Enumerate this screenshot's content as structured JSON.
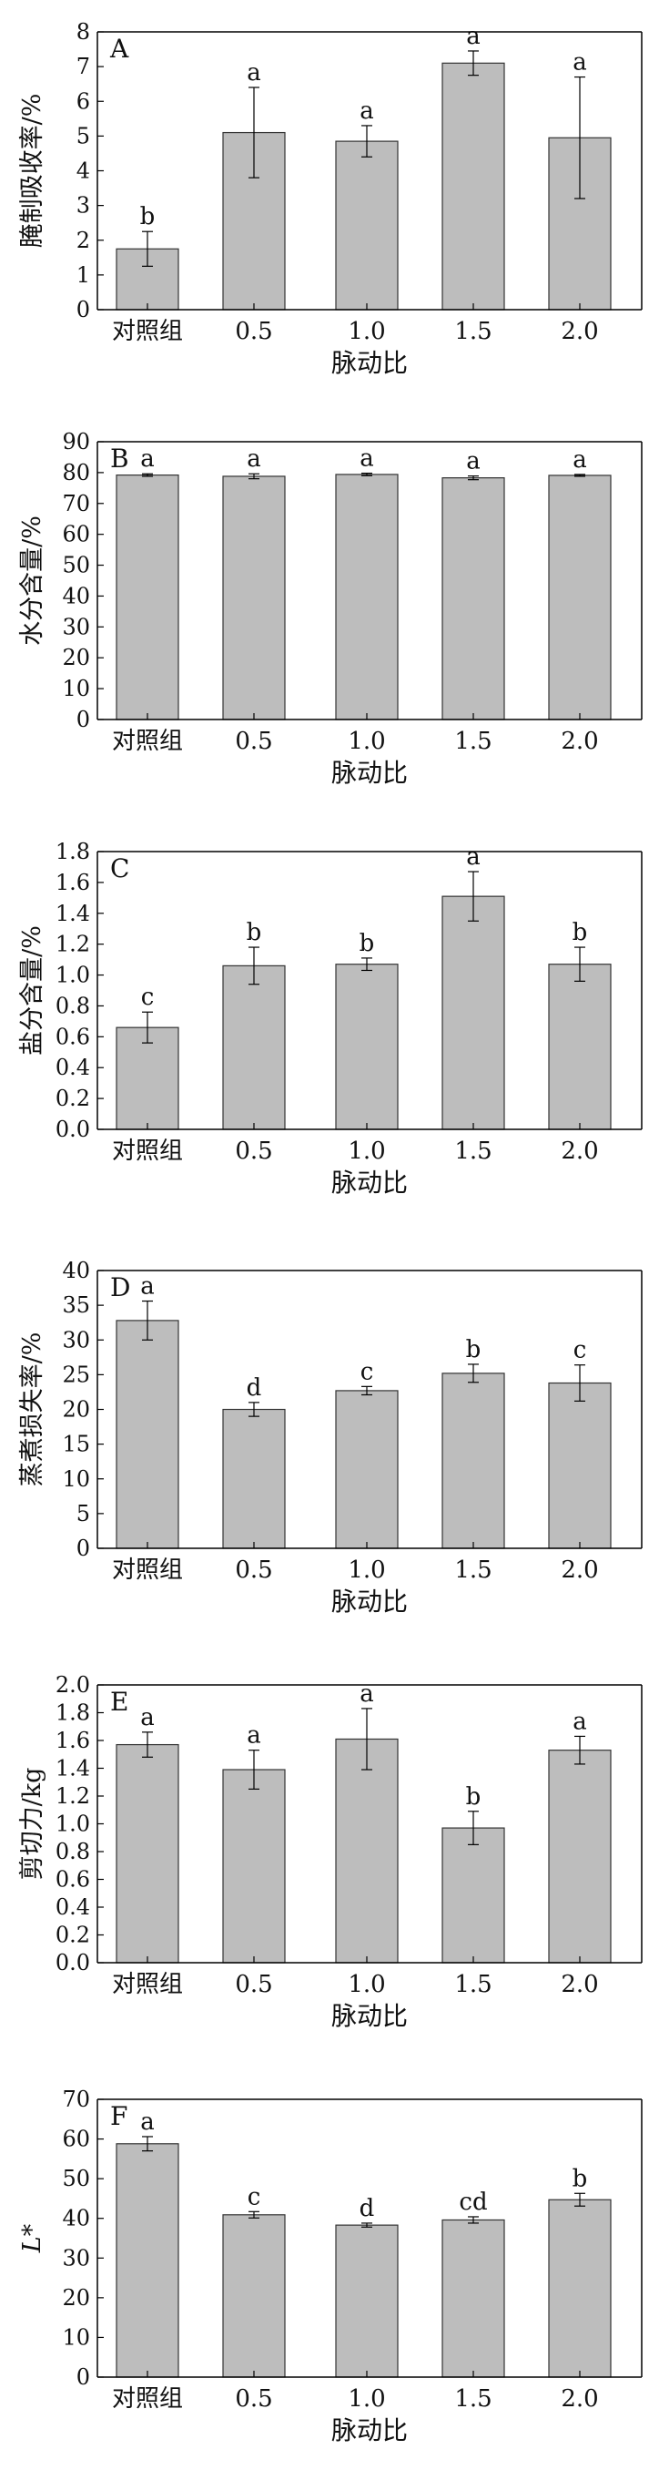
{
  "style": {
    "bar_fill": "#bdbdbd",
    "bar_stroke": "#333333",
    "axis_color": "#000000"
  },
  "chart_data": [
    {
      "type": "bar",
      "panel": "A",
      "ylabel": "腌制吸收率/%",
      "xlabel": "脉动比",
      "categories": [
        "对照组",
        "0.5",
        "1.0",
        "1.5",
        "2.0"
      ],
      "values": [
        1.75,
        5.1,
        4.85,
        7.1,
        4.95
      ],
      "errors": [
        0.5,
        1.3,
        0.45,
        0.35,
        1.75
      ],
      "letters": [
        "b",
        "a",
        "a",
        "a",
        "a"
      ],
      "ylim": [
        0,
        8
      ],
      "yticks": [
        "0",
        "1",
        "2",
        "3",
        "4",
        "5",
        "6",
        "7",
        "8"
      ],
      "grid": false
    },
    {
      "type": "bar",
      "panel": "B",
      "ylabel": "水分含量/%",
      "xlabel": "脉动比",
      "categories": [
        "对照组",
        "0.5",
        "1.0",
        "1.5",
        "2.0"
      ],
      "values": [
        79.2,
        78.8,
        79.4,
        78.3,
        79.1
      ],
      "errors": [
        0.4,
        0.8,
        0.4,
        0.6,
        0.3
      ],
      "letters": [
        "a",
        "a",
        "a",
        "a",
        "a"
      ],
      "ylim": [
        0,
        90
      ],
      "yticks": [
        "0",
        "10",
        "20",
        "30",
        "40",
        "50",
        "60",
        "70",
        "80",
        "90"
      ],
      "grid": false
    },
    {
      "type": "bar",
      "panel": "C",
      "ylabel": "盐分含量/%",
      "xlabel": "脉动比",
      "categories": [
        "对照组",
        "0.5",
        "1.0",
        "1.5",
        "2.0"
      ],
      "values": [
        0.66,
        1.06,
        1.07,
        1.51,
        1.07
      ],
      "errors": [
        0.1,
        0.12,
        0.04,
        0.16,
        0.11
      ],
      "letters": [
        "c",
        "b",
        "b",
        "a",
        "b"
      ],
      "ylim": [
        0,
        1.8
      ],
      "yticks": [
        "0.0",
        "0.2",
        "0.4",
        "0.6",
        "0.8",
        "1.0",
        "1.2",
        "1.4",
        "1.6",
        "1.8"
      ],
      "grid": false
    },
    {
      "type": "bar",
      "panel": "D",
      "ylabel": "蒸煮损失率/%",
      "xlabel": "脉动比",
      "categories": [
        "对照组",
        "0.5",
        "1.0",
        "1.5",
        "2.0"
      ],
      "values": [
        32.8,
        20.0,
        22.7,
        25.2,
        23.8
      ],
      "errors": [
        2.8,
        1.0,
        0.6,
        1.3,
        2.6
      ],
      "letters": [
        "a",
        "d",
        "c",
        "b",
        "c"
      ],
      "ylim": [
        0,
        40
      ],
      "yticks": [
        "0",
        "5",
        "10",
        "15",
        "20",
        "25",
        "30",
        "35",
        "40"
      ],
      "grid": false
    },
    {
      "type": "bar",
      "panel": "E",
      "ylabel": "剪切力/kg",
      "xlabel": "脉动比",
      "categories": [
        "对照组",
        "0.5",
        "1.0",
        "1.5",
        "2.0"
      ],
      "values": [
        1.57,
        1.39,
        1.61,
        0.97,
        1.53
      ],
      "errors": [
        0.09,
        0.14,
        0.22,
        0.12,
        0.1
      ],
      "letters": [
        "a",
        "a",
        "a",
        "b",
        "a"
      ],
      "ylim": [
        0,
        2.0
      ],
      "yticks": [
        "0.0",
        "0.2",
        "0.4",
        "0.6",
        "0.8",
        "1.0",
        "1.2",
        "1.4",
        "1.6",
        "1.8",
        "2.0"
      ],
      "grid": false
    },
    {
      "type": "bar",
      "panel": "F",
      "ylabel": "L*",
      "xlabel": "脉动比",
      "categories": [
        "对照组",
        "0.5",
        "1.0",
        "1.5",
        "2.0"
      ],
      "values": [
        58.8,
        40.9,
        38.3,
        39.6,
        44.7
      ],
      "errors": [
        1.8,
        0.8,
        0.5,
        0.8,
        1.6
      ],
      "letters": [
        "a",
        "c",
        "d",
        "cd",
        "b"
      ],
      "ylim": [
        0,
        70
      ],
      "yticks": [
        "0",
        "10",
        "20",
        "30",
        "40",
        "50",
        "60",
        "70"
      ],
      "grid": false
    }
  ]
}
